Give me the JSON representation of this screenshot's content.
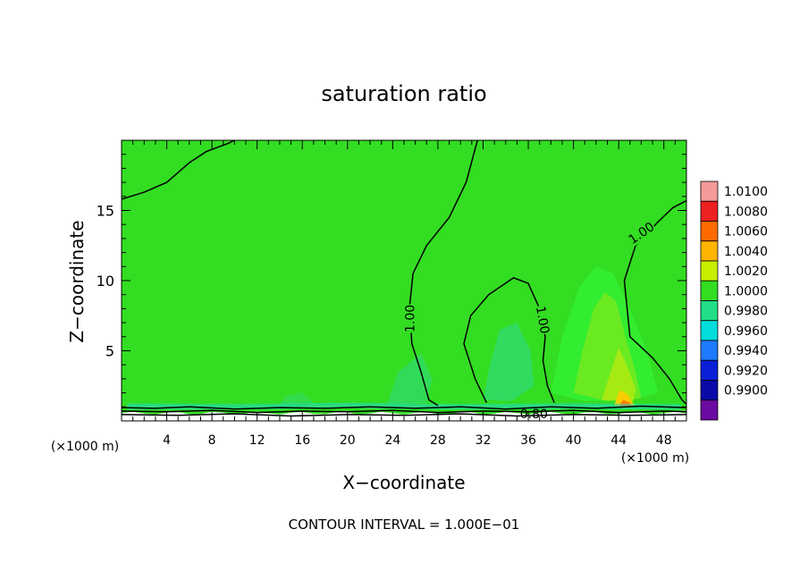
{
  "chart_data": {
    "type": "heatmap",
    "title": "saturation ratio",
    "xlabel": "X−coordinate",
    "ylabel": "Z−coordinate",
    "x_unit_left": "(×1000 m)",
    "x_unit_right": "(×1000 m)",
    "xlim": [
      0,
      50
    ],
    "ylim": [
      0,
      20
    ],
    "x_ticks": [
      4,
      8,
      12,
      16,
      20,
      24,
      28,
      32,
      36,
      40,
      44,
      48
    ],
    "y_ticks": [
      5,
      10,
      15
    ],
    "footer": "CONTOUR INTERVAL = 1.000E−01",
    "background_value": 1.0,
    "colorbar": {
      "levels": [
        "1.0100",
        "1.0080",
        "1.0060",
        "1.0040",
        "1.0020",
        "1.0000",
        "0.9980",
        "0.9960",
        "0.9940",
        "0.9920",
        "0.9900"
      ],
      "colors": [
        "#f49a9a",
        "#ee2020",
        "#ff6a00",
        "#ffb400",
        "#c8ee00",
        "#33dd22",
        "#22dd88",
        "#00dddd",
        "#1e7bff",
        "#0a20d8",
        "#0a0aa8",
        "#6a0aa0"
      ]
    },
    "contour_labels": [
      {
        "text": "1.00",
        "x": 25.5,
        "z": 7.3
      },
      {
        "text": "1.00",
        "x": 37.3,
        "z": 7.2
      },
      {
        "text": "1.00",
        "x": 46.0,
        "z": 13.4
      },
      {
        "text": "0.80",
        "x": 36.5,
        "z": 0.5
      }
    ],
    "contour_lines": [
      {
        "level": 1.0,
        "points": [
          [
            0,
            15.8
          ],
          [
            2,
            16.3
          ],
          [
            4,
            17
          ],
          [
            6,
            18.4
          ],
          [
            7.5,
            19.2
          ],
          [
            9.5,
            19.8
          ],
          [
            10,
            20
          ]
        ]
      },
      {
        "level": 1.0,
        "points": [
          [
            31.5,
            20
          ],
          [
            30.5,
            17
          ],
          [
            29,
            14.5
          ],
          [
            27,
            12.5
          ],
          [
            25.8,
            10.5
          ],
          [
            25.5,
            8.2
          ],
          [
            25.7,
            5.5
          ],
          [
            26.5,
            3.5
          ],
          [
            27.2,
            1.5
          ],
          [
            28,
            1.1
          ]
        ]
      },
      {
        "level": 1.0,
        "points": [
          [
            32.3,
            1.3
          ],
          [
            31.3,
            3
          ],
          [
            30.3,
            5.5
          ],
          [
            30.9,
            7.5
          ],
          [
            32.5,
            9
          ],
          [
            34.7,
            10.2
          ],
          [
            36,
            9.8
          ],
          [
            37,
            8
          ],
          [
            37.5,
            6
          ],
          [
            37.3,
            4.3
          ],
          [
            37.7,
            2.5
          ],
          [
            38.3,
            1.3
          ]
        ]
      },
      {
        "level": 1.0,
        "points": [
          [
            50,
            15.7
          ],
          [
            48.8,
            15.2
          ],
          [
            47.5,
            14.2
          ],
          [
            45.5,
            12.5
          ],
          [
            44.5,
            10
          ],
          [
            45,
            6
          ],
          [
            47,
            4.5
          ],
          [
            48.5,
            3
          ],
          [
            49.6,
            1.5
          ],
          [
            50,
            1.2
          ]
        ]
      },
      {
        "level": 0.8,
        "points": [
          [
            0,
            0.95
          ],
          [
            3,
            0.9
          ],
          [
            6,
            1.0
          ],
          [
            10,
            0.85
          ],
          [
            14,
            0.95
          ],
          [
            18,
            0.9
          ],
          [
            22,
            1.0
          ],
          [
            26,
            0.9
          ],
          [
            30,
            1.0
          ],
          [
            34,
            0.85
          ],
          [
            38,
            1.0
          ],
          [
            42,
            0.9
          ],
          [
            46,
            1.05
          ],
          [
            50,
            0.95
          ]
        ]
      },
      {
        "level": 0.7,
        "points": [
          [
            0,
            0.7
          ],
          [
            4,
            0.65
          ],
          [
            8,
            0.75
          ],
          [
            12,
            0.6
          ],
          [
            16,
            0.7
          ],
          [
            20,
            0.65
          ],
          [
            24,
            0.75
          ],
          [
            28,
            0.6
          ],
          [
            32,
            0.7
          ],
          [
            36,
            0.65
          ],
          [
            40,
            0.75
          ],
          [
            44,
            0.6
          ],
          [
            48,
            0.7
          ],
          [
            50,
            0.65
          ]
        ]
      },
      {
        "level": 0.6,
        "points": [
          [
            0,
            0.45
          ],
          [
            5,
            0.4
          ],
          [
            10,
            0.5
          ],
          [
            15,
            0.35
          ],
          [
            20,
            0.45
          ],
          [
            25,
            0.4
          ],
          [
            30,
            0.5
          ],
          [
            35,
            0.35
          ],
          [
            40,
            0.45
          ],
          [
            45,
            0.4
          ],
          [
            50,
            0.45
          ]
        ]
      }
    ],
    "patches": [
      {
        "color": "#33ee33",
        "opacity": 0.9,
        "points": [
          [
            38,
            2
          ],
          [
            39,
            6
          ],
          [
            40.5,
            9.5
          ],
          [
            42,
            11
          ],
          [
            43.5,
            10.5
          ],
          [
            45,
            8
          ],
          [
            46.5,
            5
          ],
          [
            47.5,
            2
          ],
          [
            45,
            1.5
          ],
          [
            41,
            1.4
          ]
        ]
      },
      {
        "color": "#7ee81c",
        "opacity": 0.75,
        "points": [
          [
            40,
            2
          ],
          [
            40.8,
            5
          ],
          [
            41.8,
            8
          ],
          [
            42.8,
            9.2
          ],
          [
            43.8,
            8.5
          ],
          [
            44.6,
            6
          ],
          [
            45.5,
            3.5
          ],
          [
            46,
            1.6
          ],
          [
            43,
            1.4
          ]
        ]
      },
      {
        "color": "#b6ea10",
        "opacity": 0.8,
        "points": [
          [
            42.5,
            1.5
          ],
          [
            43.3,
            3.5
          ],
          [
            44,
            5.2
          ],
          [
            44.7,
            4
          ],
          [
            45.5,
            2.3
          ],
          [
            45.3,
            1.4
          ]
        ]
      },
      {
        "color": "#ffcc00",
        "opacity": 0.95,
        "points": [
          [
            43.6,
            1.1
          ],
          [
            44.1,
            2.2
          ],
          [
            44.8,
            1.9
          ],
          [
            45.4,
            1.1
          ]
        ]
      },
      {
        "color": "#ff7a00",
        "opacity": 1,
        "points": [
          [
            44.0,
            1.05
          ],
          [
            44.4,
            1.5
          ],
          [
            45.0,
            1.3
          ],
          [
            45.2,
            1.0
          ]
        ]
      },
      {
        "color": "#2fd99b",
        "opacity": 0.5,
        "points": [
          [
            32,
            1.5
          ],
          [
            32.6,
            4
          ],
          [
            33.5,
            6.5
          ],
          [
            35,
            7
          ],
          [
            36.2,
            5
          ],
          [
            36.5,
            2.5
          ],
          [
            34.5,
            1.4
          ]
        ]
      },
      {
        "color": "#2fd99b",
        "opacity": 0.45,
        "points": [
          [
            23.5,
            1.2
          ],
          [
            24.5,
            3.5
          ],
          [
            26.5,
            4.8
          ],
          [
            27.5,
            3
          ],
          [
            27,
            1.3
          ]
        ]
      },
      {
        "color": "#2fd99b",
        "opacity": 0.35,
        "points": [
          [
            14,
            1.1
          ],
          [
            14.5,
            1.8
          ],
          [
            16,
            2
          ],
          [
            17,
            1.3
          ]
        ]
      },
      {
        "color": "#20d8c8",
        "opacity": 0.55,
        "points": [
          [
            0.5,
            0.8
          ],
          [
            10,
            0.8
          ],
          [
            20,
            0.9
          ],
          [
            30,
            0.8
          ],
          [
            40,
            0.85
          ],
          [
            49.5,
            0.8
          ],
          [
            49.5,
            1.2
          ],
          [
            40,
            1.25
          ],
          [
            30,
            1.2
          ],
          [
            20,
            1.3
          ],
          [
            10,
            1.2
          ],
          [
            0.5,
            1.25
          ]
        ]
      }
    ]
  }
}
